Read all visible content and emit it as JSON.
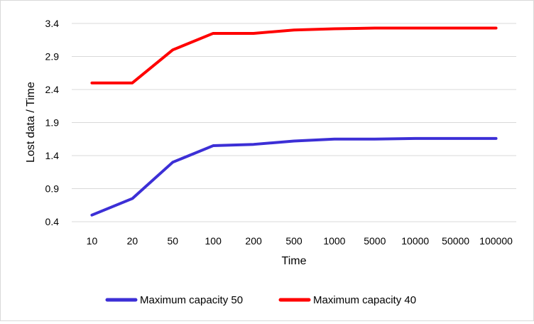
{
  "chart_data": {
    "type": "line",
    "title": "",
    "xlabel": "Time",
    "ylabel": "Lost data / Time",
    "categories": [
      "10",
      "20",
      "50",
      "100",
      "200",
      "500",
      "1000",
      "5000",
      "10000",
      "50000",
      "100000"
    ],
    "yticks": [
      "0.4",
      "0.9",
      "1.4",
      "1.9",
      "2.4",
      "2.9",
      "3.4"
    ],
    "ylim": [
      0.4,
      3.4
    ],
    "grid": true,
    "legend_position": "bottom",
    "series": [
      {
        "name": "Maximum capacity 50",
        "color": "#3c2fd6",
        "values": [
          0.5,
          0.75,
          1.3,
          1.55,
          1.57,
          1.62,
          1.65,
          1.65,
          1.66,
          1.66,
          1.66
        ]
      },
      {
        "name": "Maximum capacity 40",
        "color": "#ff0000",
        "values": [
          2.5,
          2.5,
          3.0,
          3.25,
          3.25,
          3.3,
          3.32,
          3.33,
          3.33,
          3.33,
          3.33
        ]
      }
    ]
  }
}
